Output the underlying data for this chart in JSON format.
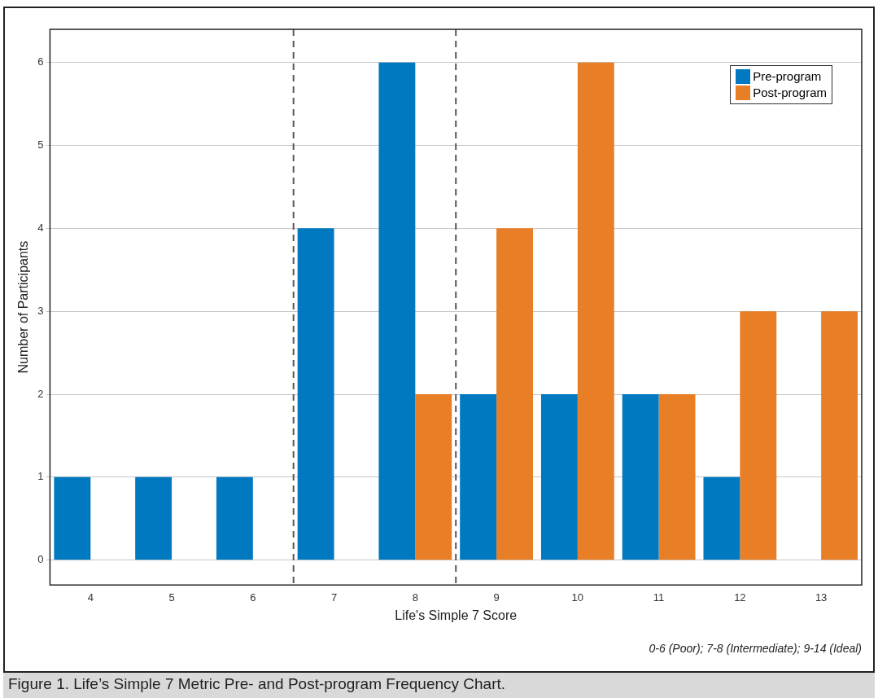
{
  "chart_data": {
    "type": "bar",
    "xlabel": "Life's Simple 7 Score",
    "ylabel": "Number of Participants",
    "x": [
      4,
      5,
      6,
      7,
      8,
      9,
      10,
      11,
      12,
      13
    ],
    "series": [
      {
        "name": "Pre-program",
        "color": "#0079c1",
        "values": [
          1,
          1,
          1,
          4,
          6,
          2,
          2,
          2,
          1,
          null
        ]
      },
      {
        "name": "Post-program",
        "color": "#e87e26",
        "values": [
          null,
          null,
          null,
          null,
          2,
          4,
          6,
          2,
          3,
          3
        ]
      }
    ],
    "xlim": [
      3.5,
      13.5
    ],
    "xticks": [
      4,
      5,
      6,
      7,
      8,
      9,
      10,
      11,
      12,
      13
    ],
    "ylim": [
      -0.3,
      6.4
    ],
    "yticks": [
      0,
      1,
      2,
      3,
      4,
      5,
      6
    ],
    "grid": "y",
    "legend": "top right",
    "ref_lines": [
      {
        "axis": "x",
        "value": 6.5,
        "color": "#555560",
        "line_style": "dashed"
      },
      {
        "axis": "x",
        "value": 8.5,
        "color": "#555560",
        "line_style": "dashed"
      }
    ],
    "annotations": [
      "0-6 (Poor); 7-8 (Intermediate); 9-14 (Ideal)",
      "Figure 1.  Life’s Simple 7 Metric Pre- and Post-program Frequency Chart."
    ]
  }
}
